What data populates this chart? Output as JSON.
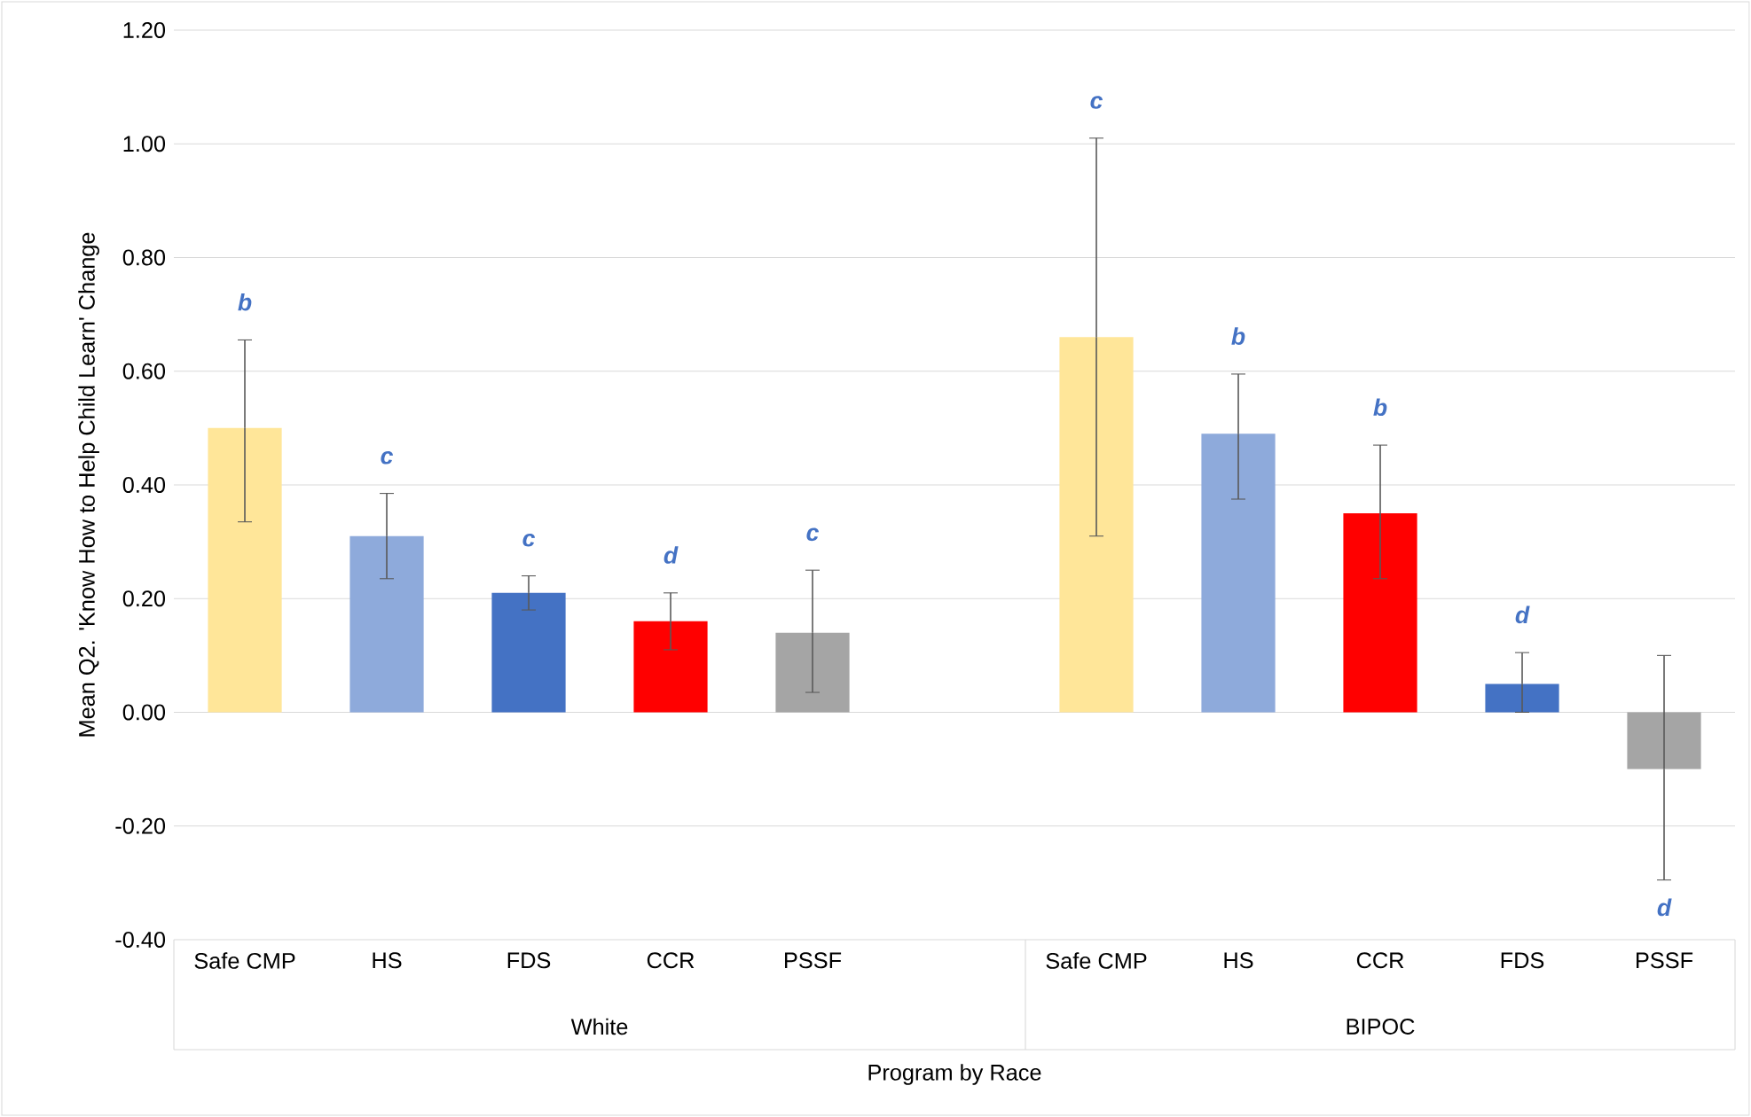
{
  "chart_data": {
    "type": "bar",
    "xlabel": "Program by Race",
    "ylabel": "Mean Q2. 'Know How to Help Child Learn' Change",
    "categories": [
      "Safe CMP",
      "HS",
      "FDS",
      "CCR",
      "PSSF",
      null,
      "Safe CMP",
      "HS",
      "CCR",
      "FDS",
      "PSSF"
    ],
    "values": [
      0.5,
      0.31,
      0.21,
      0.16,
      0.14,
      null,
      0.66,
      0.49,
      0.35,
      0.05,
      -0.1
    ],
    "colors": [
      "#ffe699",
      "#8eaadb",
      "#4472c4",
      "#ff0000",
      "#a5a5a5",
      null,
      "#ffe699",
      "#8eaadb",
      "#ff0000",
      "#4472c4",
      "#a5a5a5"
    ],
    "errors": [
      [
        0.335,
        0.655
      ],
      [
        0.235,
        0.385
      ],
      [
        0.18,
        0.24
      ],
      [
        0.11,
        0.21
      ],
      [
        0.035,
        0.25
      ],
      null,
      [
        0.31,
        1.01
      ],
      [
        0.375,
        0.595
      ],
      [
        0.235,
        0.47
      ],
      [
        0.0,
        0.105
      ],
      [
        -0.295,
        0.1
      ]
    ],
    "annotations": [
      "White",
      "BIPOC",
      "b",
      "c",
      "c",
      "d",
      "c",
      "c",
      "b",
      "b",
      "d",
      "d"
    ],
    "ylim": [
      -0.4,
      1.2
    ],
    "yticks": [
      {
        "value": -0.4,
        "label": "-0.40"
      },
      {
        "value": -0.2,
        "label": "-0.20"
      },
      {
        "value": 0,
        "label": "0.00"
      },
      {
        "value": 0.2,
        "label": "0.20"
      },
      {
        "value": 0.4,
        "label": "0.40"
      },
      {
        "value": 0.6,
        "label": "0.60"
      },
      {
        "value": 0.8,
        "label": "0.80"
      },
      {
        "value": 1.0,
        "label": "1.00"
      },
      {
        "value": 1.2,
        "label": "1.20"
      }
    ],
    "grid": "y"
  }
}
